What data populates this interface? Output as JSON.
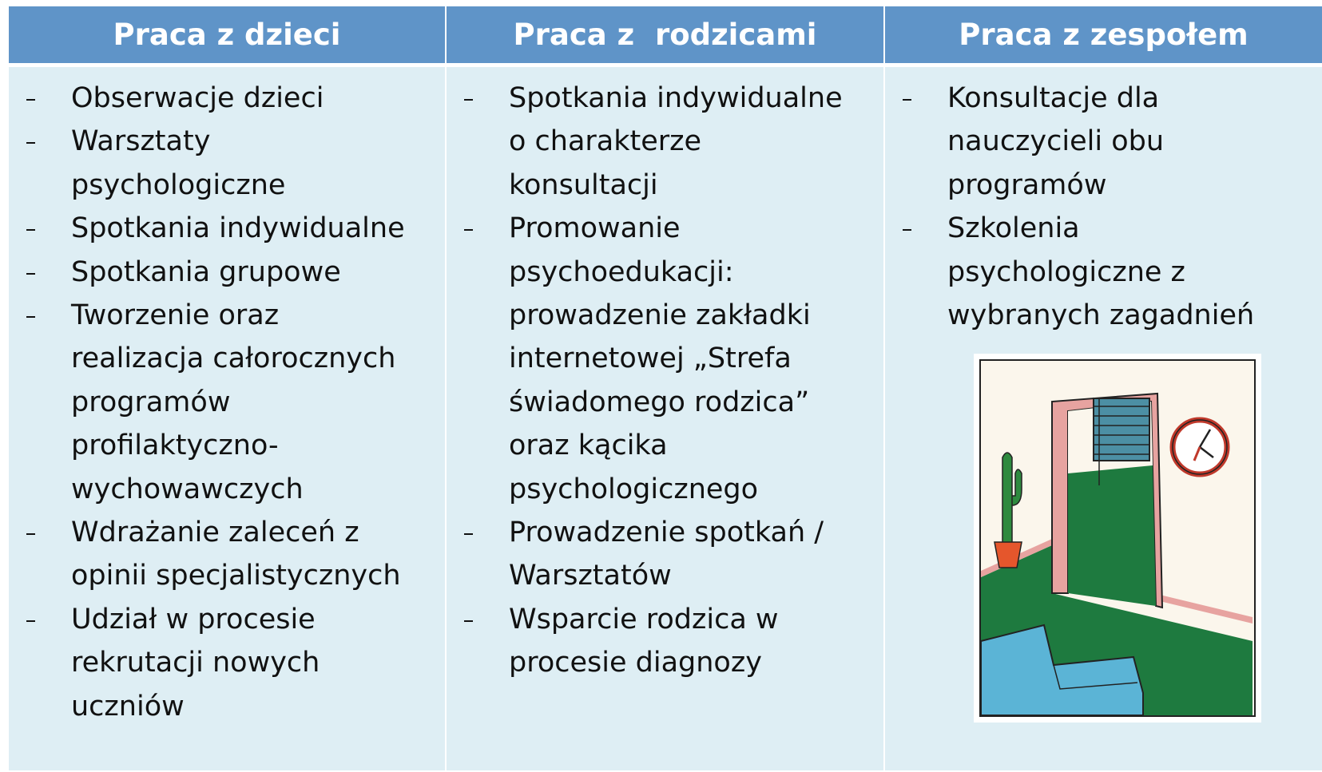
{
  "table": {
    "columns": [
      {
        "header": "Praca z dzieci",
        "items": [
          [
            "Obserwacje dzieci"
          ],
          [
            "Warsztaty",
            "psychologiczne"
          ],
          [
            "Spotkania indywidualne"
          ],
          [
            "Spotkania grupowe"
          ],
          [
            "Tworzenie oraz",
            "realizacja całorocznych",
            "programów",
            "profilaktyczno-",
            "wychowawczych"
          ],
          [
            "Wdrażanie zaleceń z",
            "opinii specjalistycznych"
          ],
          [
            "Udział w procesie",
            "rekrutacji nowych",
            "uczniów"
          ]
        ]
      },
      {
        "header": "Praca z  rodzicami",
        "items": [
          [
            "Spotkania indywidualne",
            "o charakterze",
            "konsultacji"
          ],
          [
            "Promowanie",
            "psychoedukacji:",
            "prowadzenie zakładki",
            "internetowej „Strefa",
            "świadomego rodzica”",
            "oraz kącika",
            "psychologicznego"
          ],
          [
            "Prowadzenie spotkań /",
            "Warsztatów"
          ],
          [
            "Wsparcie rodzica w",
            "procesie diagnozy"
          ]
        ]
      },
      {
        "header": "Praca z zespołem",
        "items": [
          [
            "Konsultacje dla",
            "nauczycieli obu",
            "programów"
          ],
          [
            "Szkolenia",
            "psychologiczne z",
            "wybranych zagadnień"
          ]
        ]
      }
    ]
  }
}
